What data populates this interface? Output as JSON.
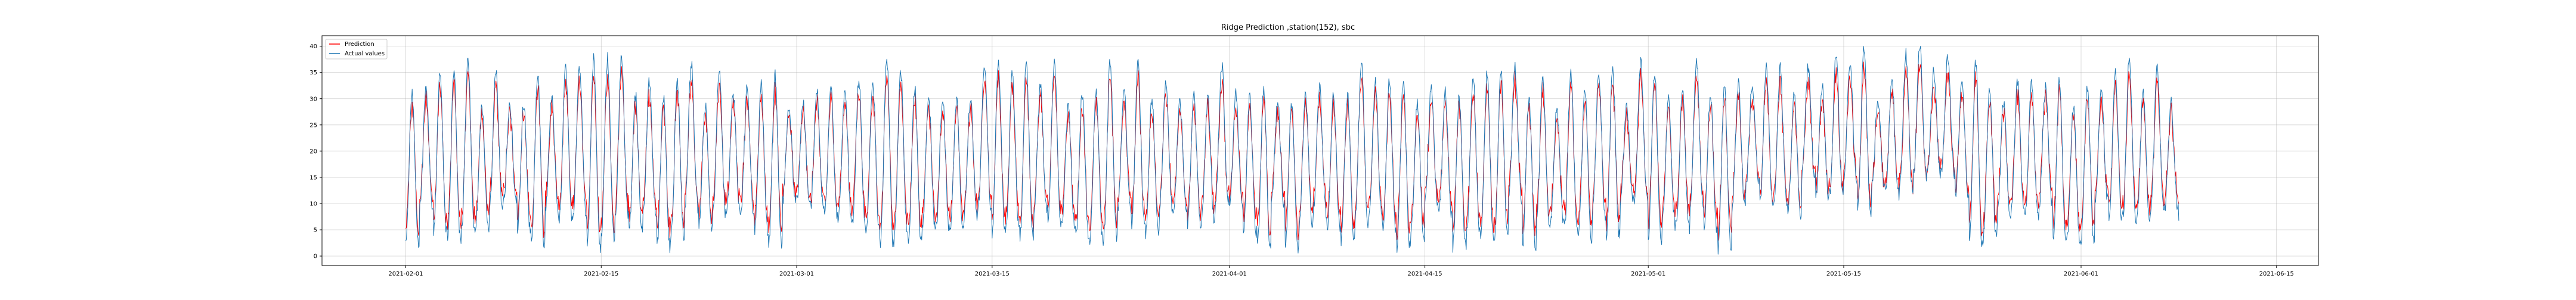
{
  "chart_data": {
    "type": "line",
    "title": "Ridge Prediction ,station(152), sbc",
    "xlabel": "",
    "ylabel": "",
    "x_start": "2021-02-01",
    "x_end": "2021-06-08",
    "xlim": [
      "2021-01-26",
      "2021-06-18"
    ],
    "ylim": [
      -1.8,
      42
    ],
    "yticks": [
      0,
      5,
      10,
      15,
      20,
      25,
      30,
      35,
      40
    ],
    "xticks": [
      "2021-02-01",
      "2021-02-15",
      "2021-03-01",
      "2021-03-15",
      "2021-04-01",
      "2021-04-15",
      "2021-05-01",
      "2021-05-15",
      "2021-06-01",
      "2021-06-15"
    ],
    "grid": true,
    "legend_position": "top-left",
    "series": [
      {
        "name": "Prediction",
        "color": "#ff0000",
        "sampling": "hourly",
        "value_range": [
          3,
          37
        ]
      },
      {
        "name": "Actual values",
        "color": "#1f77b4",
        "sampling": "hourly",
        "value_range": [
          0,
          40
        ]
      }
    ]
  }
}
